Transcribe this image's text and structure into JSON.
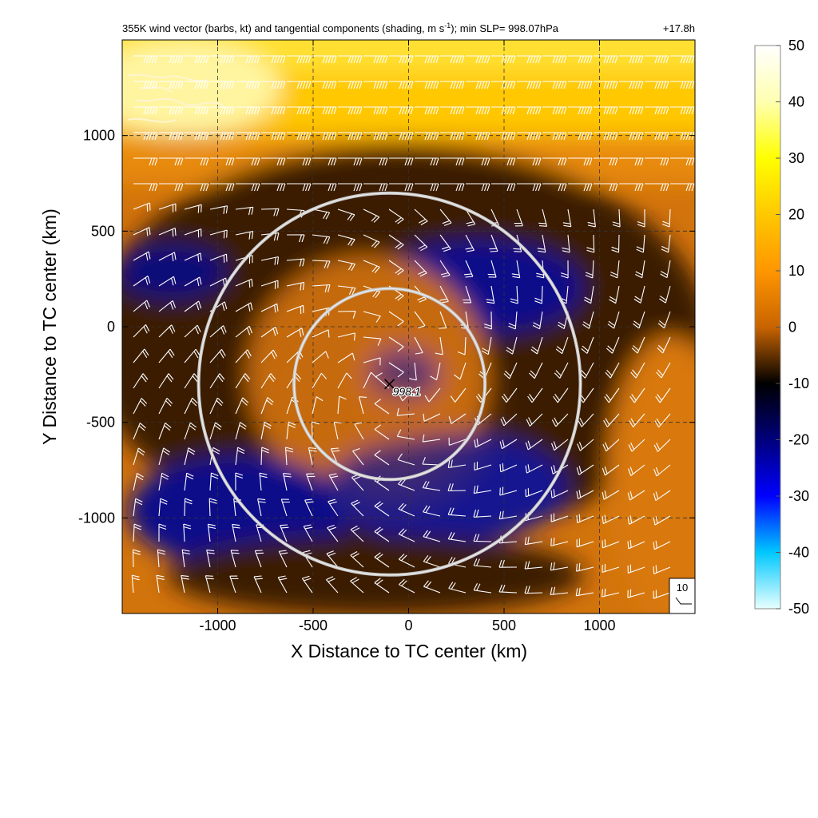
{
  "chart_data": {
    "type": "heatmap",
    "title": "355K wind vector (barbs, kt) and tangential components (shading, m s",
    "title_superscript": "-1",
    "title_suffix": "); min SLP= 998.07hPa",
    "forecast_time": "+17.8h",
    "xlabel": "X Distance to TC center (km)",
    "ylabel": "Y Distance to TC center (km)",
    "xlim": [
      -1500,
      1500
    ],
    "ylim": [
      -1500,
      1500
    ],
    "xticks": [
      -1000,
      -500,
      0,
      500,
      1000
    ],
    "yticks": [
      -1000,
      -500,
      0,
      500,
      1000
    ],
    "grid": "dashed",
    "colorbar": {
      "min": -50,
      "max": 50,
      "ticks": [
        50,
        40,
        30,
        20,
        10,
        0,
        -10,
        -20,
        -30,
        -40,
        -50
      ],
      "colors": [
        "#ffffff",
        "#ffffb0",
        "#ffff00",
        "#ffc800",
        "#ff9600",
        "#c86400",
        "#000000",
        "#00007c",
        "#0000ff",
        "#00c8ff",
        "#e8ffff"
      ]
    },
    "center": {
      "x": -100,
      "y": -300,
      "label": "998.1"
    },
    "circles_radius_km": [
      500,
      1000
    ],
    "reference_barb_label": "10"
  }
}
